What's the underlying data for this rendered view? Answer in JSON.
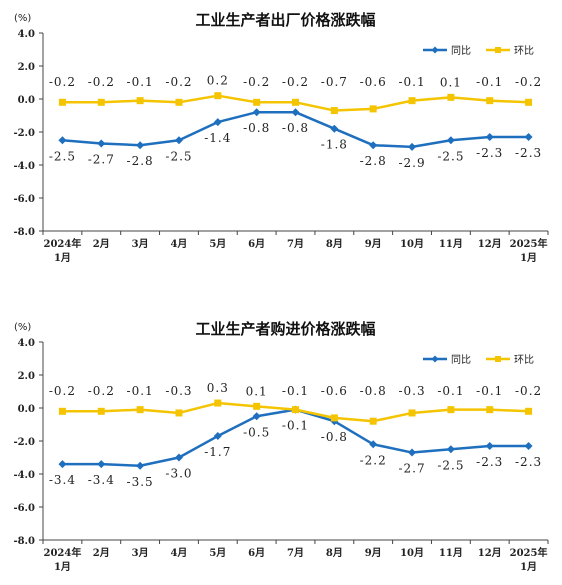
{
  "chart_data": [
    {
      "type": "line",
      "title": "工业生产者出厂价格涨跌幅",
      "y_unit": "(%)",
      "ylim": [
        -8,
        4
      ],
      "yticks": [
        "4.0",
        "2.0",
        "0.0",
        "-2.0",
        "-4.0",
        "-6.0",
        "-8.0"
      ],
      "categories": [
        [
          "2024年",
          "1月"
        ],
        [
          "2月"
        ],
        [
          "3月"
        ],
        [
          "4月"
        ],
        [
          "5月"
        ],
        [
          "6月"
        ],
        [
          "7月"
        ],
        [
          "8月"
        ],
        [
          "9月"
        ],
        [
          "10月"
        ],
        [
          "11月"
        ],
        [
          "12月"
        ],
        [
          "2025年",
          "1月"
        ]
      ],
      "grid": false,
      "legend": "top-right",
      "series": [
        {
          "name": "同比",
          "color": "#1f6fbf",
          "marker": "diamond",
          "values": [
            -2.5,
            -2.7,
            -2.8,
            -2.5,
            -1.4,
            -0.8,
            -0.8,
            -1.8,
            -2.8,
            -2.9,
            -2.5,
            -2.3,
            -2.3
          ],
          "labels": [
            "-2.5",
            "-2.7",
            "-2.8",
            "-2.5",
            "-1.4",
            "-0.8",
            "-0.8",
            "-1.8",
            "-2.8",
            "-2.9",
            "-2.5",
            "-2.3",
            "-2.3"
          ]
        },
        {
          "name": "环比",
          "color": "#f5c400",
          "marker": "square",
          "values": [
            -0.2,
            -0.2,
            -0.1,
            -0.2,
            0.2,
            -0.2,
            -0.2,
            -0.7,
            -0.6,
            -0.1,
            0.1,
            -0.1,
            -0.2
          ],
          "labels": [
            "-0.2",
            "-0.2",
            "-0.1",
            "-0.2",
            "0.2",
            "-0.2",
            "-0.2",
            "-0.7",
            "-0.6",
            "-0.1",
            "0.1",
            "-0.1",
            "-0.2"
          ]
        }
      ]
    },
    {
      "type": "line",
      "title": "工业生产者购进价格涨跌幅",
      "y_unit": "(%)",
      "ylim": [
        -8,
        4
      ],
      "yticks": [
        "4.0",
        "2.0",
        "0.0",
        "-2.0",
        "-4.0",
        "-6.0",
        "-8.0"
      ],
      "categories": [
        [
          "2024年",
          "1月"
        ],
        [
          "2月"
        ],
        [
          "3月"
        ],
        [
          "4月"
        ],
        [
          "5月"
        ],
        [
          "6月"
        ],
        [
          "7月"
        ],
        [
          "8月"
        ],
        [
          "9月"
        ],
        [
          "10月"
        ],
        [
          "11月"
        ],
        [
          "12月"
        ],
        [
          "2025年",
          "1月"
        ]
      ],
      "grid": false,
      "legend": "top-right",
      "series": [
        {
          "name": "同比",
          "color": "#1f6fbf",
          "marker": "diamond",
          "values": [
            -3.4,
            -3.4,
            -3.5,
            -3.0,
            -1.7,
            -0.5,
            -0.1,
            -0.8,
            -2.2,
            -2.7,
            -2.5,
            -2.3,
            -2.3
          ],
          "labels": [
            "-3.4",
            "-3.4",
            "-3.5",
            "-3.0",
            "-1.7",
            "-0.5",
            "-0.1",
            "-0.8",
            "-2.2",
            "-2.7",
            "-2.5",
            "-2.3",
            "-2.3"
          ]
        },
        {
          "name": "环比",
          "color": "#f5c400",
          "marker": "square",
          "values": [
            -0.2,
            -0.2,
            -0.1,
            -0.3,
            0.3,
            0.1,
            -0.1,
            -0.6,
            -0.8,
            -0.3,
            -0.1,
            -0.1,
            -0.2
          ],
          "labels": [
            "-0.2",
            "-0.2",
            "-0.1",
            "-0.3",
            "0.3",
            "0.1",
            "-0.1",
            "-0.6",
            "-0.8",
            "-0.3",
            "-0.1",
            "-0.1",
            "-0.2"
          ]
        }
      ]
    }
  ]
}
